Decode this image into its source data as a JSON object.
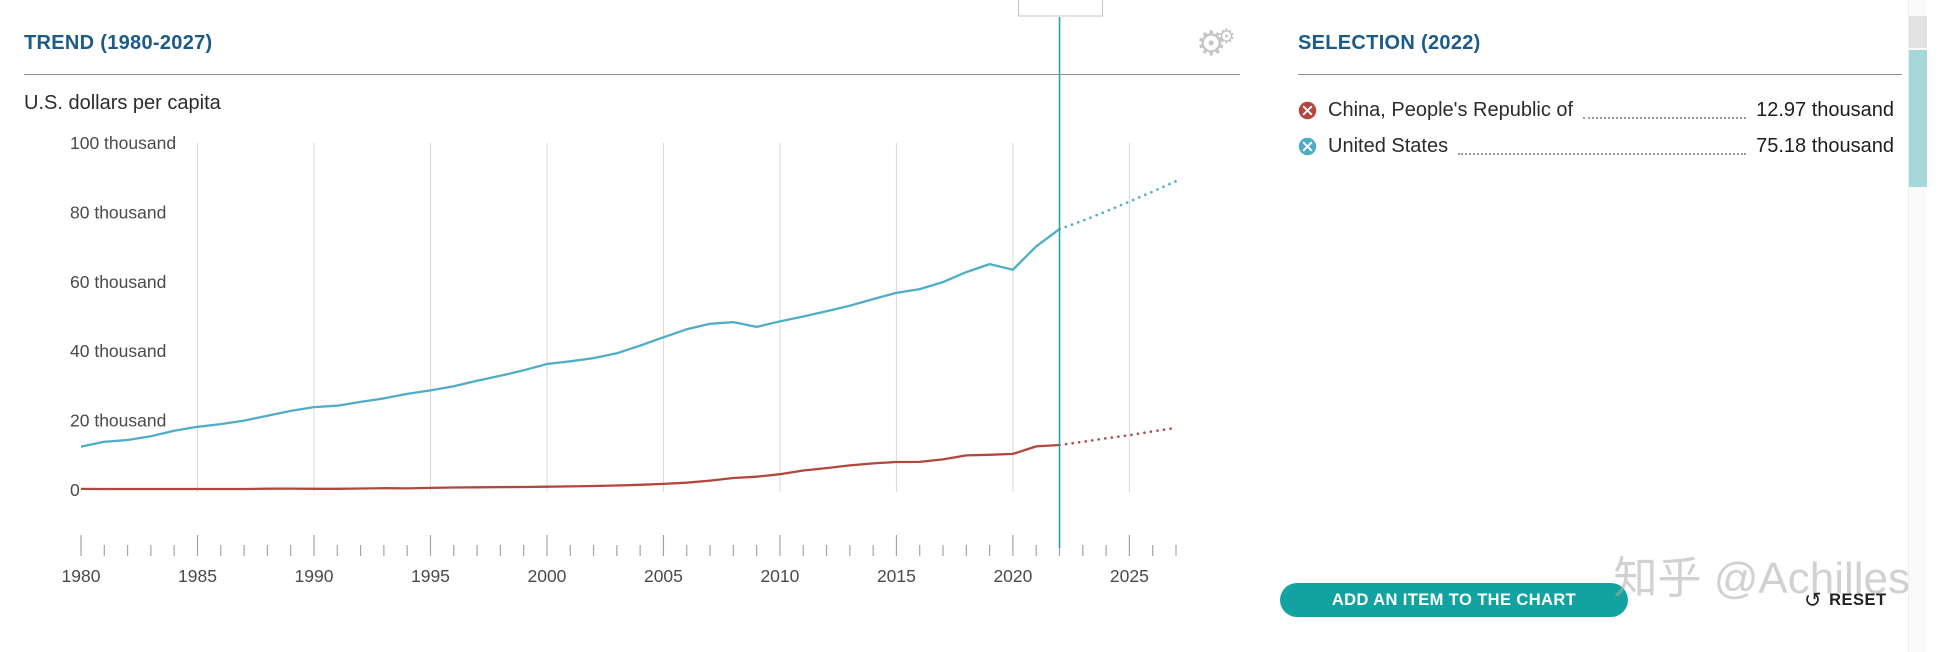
{
  "trend": {
    "title": "TREND (1980-2027)",
    "unit_label": "U.S. dollars per capita"
  },
  "selection": {
    "title": "SELECTION (2022)",
    "items": [
      {
        "name": "China, People's Republic of",
        "value": "12.97 thousand",
        "color": "#b2473e"
      },
      {
        "name": "United States",
        "value": "75.18 thousand",
        "color": "#4fadc6"
      }
    ]
  },
  "actions": {
    "add_item_label": "ADD AN ITEM TO THE CHART",
    "reset_label": "RESET",
    "reset_icon": "↺"
  },
  "icons": {
    "settings_gear": "⚙"
  },
  "watermark": "知乎 @Achilles",
  "chart_data": {
    "type": "line",
    "title": "TREND (1980-2027)",
    "ylabel": "U.S. dollars per capita",
    "unit": "thousand U.S. dollars per capita",
    "grid": "vertical",
    "ylim": [
      0,
      100
    ],
    "yticks": [
      0,
      20,
      40,
      60,
      80,
      100
    ],
    "ytick_labels": [
      "0",
      "20 thousand",
      "40 thousand",
      "60 thousand",
      "80 thousand",
      "100 thousand"
    ],
    "xticks": [
      1980,
      1985,
      1990,
      1995,
      2000,
      2005,
      2010,
      2015,
      2020,
      2025
    ],
    "selected_year": 2022,
    "projection_from": 2022,
    "x": [
      1980,
      1981,
      1982,
      1983,
      1984,
      1985,
      1986,
      1987,
      1988,
      1989,
      1990,
      1991,
      1992,
      1993,
      1994,
      1995,
      1996,
      1997,
      1998,
      1999,
      2000,
      2001,
      2002,
      2003,
      2004,
      2005,
      2006,
      2007,
      2008,
      2009,
      2010,
      2011,
      2012,
      2013,
      2014,
      2015,
      2016,
      2017,
      2018,
      2019,
      2020,
      2021,
      2022,
      2023,
      2024,
      2025,
      2026,
      2027
    ],
    "series": [
      {
        "name": "China, People's Republic of",
        "color": "#b2473e",
        "values": [
          0.31,
          0.29,
          0.28,
          0.3,
          0.3,
          0.29,
          0.28,
          0.3,
          0.37,
          0.41,
          0.35,
          0.36,
          0.42,
          0.52,
          0.47,
          0.61,
          0.71,
          0.78,
          0.83,
          0.87,
          0.96,
          1.05,
          1.15,
          1.29,
          1.51,
          1.75,
          2.1,
          2.7,
          3.47,
          3.83,
          4.55,
          5.61,
          6.3,
          7.08,
          7.68,
          8.07,
          8.09,
          8.82,
          9.98,
          10.14,
          10.41,
          12.57,
          12.97,
          13.9,
          14.9,
          15.8,
          16.9,
          17.9
        ]
      },
      {
        "name": "United States",
        "color": "#4fadc6",
        "values": [
          12.5,
          13.9,
          14.4,
          15.5,
          17.1,
          18.2,
          19.0,
          20.0,
          21.4,
          22.8,
          23.9,
          24.3,
          25.4,
          26.4,
          27.7,
          28.7,
          29.9,
          31.5,
          32.9,
          34.5,
          36.3,
          37.1,
          38.0,
          39.4,
          41.6,
          44.0,
          46.3,
          47.9,
          48.4,
          47.0,
          48.6,
          50.0,
          51.5,
          53.1,
          55.0,
          56.8,
          57.9,
          59.9,
          62.8,
          65.1,
          63.5,
          70.2,
          75.18,
          77.6,
          80.3,
          83.1,
          86.0,
          89.0
        ]
      }
    ]
  }
}
